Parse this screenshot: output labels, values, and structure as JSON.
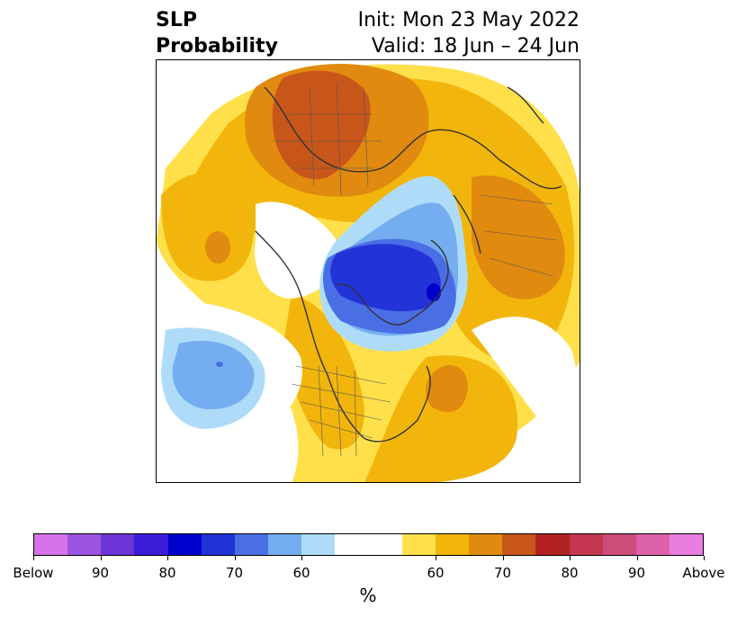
{
  "title": {
    "variable": "SLP",
    "metric": "Probability",
    "init": "Init: Mon 23 May 2022",
    "valid": "Valid: 18 Jun – 24 Jun"
  },
  "map": {
    "projection": "polar stereographic (Northern Hemisphere)",
    "fields": "SLP tercile probability shading with coastlines and political boundaries"
  },
  "colorbar": {
    "colors": [
      "#d473e8",
      "#9c55e0",
      "#6b35d8",
      "#3a1dd6",
      "#0000cc",
      "#2234d8",
      "#4a6ee4",
      "#74aef0",
      "#aedcf8",
      "#ffffff",
      "#ffffff",
      "#ffe04a",
      "#f2b50c",
      "#e08a10",
      "#c8561a",
      "#b22222",
      "#c43650",
      "#cc4c7a",
      "#dd62a8",
      "#e87ee0"
    ],
    "tick_labels": [
      "Below",
      "90",
      "80",
      "70",
      "60",
      "60",
      "70",
      "80",
      "90",
      "Above"
    ],
    "units": "%"
  }
}
